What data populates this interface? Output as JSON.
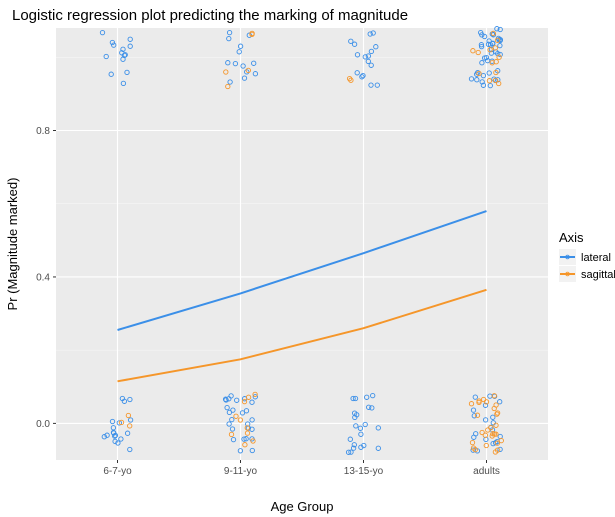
{
  "chart_data": {
    "type": "line",
    "title": "Logistic regression plot predicting the marking of magnitude",
    "xlabel": "Age Group",
    "ylabel": "Pr (Magnitude marked)",
    "categories": [
      "6-7-yo",
      "9-11-yo",
      "13-15-yo",
      "adults"
    ],
    "ylim": [
      -0.1,
      1.08
    ],
    "y_ticks": [
      0.0,
      0.4,
      0.8
    ],
    "y_tick_labels": [
      "0.0",
      "0.4",
      "0.8"
    ],
    "grid": true,
    "legend": {
      "title": "Axis",
      "position": "right"
    },
    "series": [
      {
        "name": "lateral",
        "color": "#3b8fe8",
        "values": [
          0.255,
          0.355,
          0.465,
          0.58
        ]
      },
      {
        "name": "sagittal",
        "color": "#f5962a",
        "values": [
          0.115,
          0.175,
          0.26,
          0.365
        ]
      }
    ],
    "jitter_points": [
      {
        "series": "lateral",
        "category": "6-7-yo",
        "outcome": 1,
        "count": 14
      },
      {
        "series": "lateral",
        "category": "6-7-yo",
        "outcome": 0,
        "count": 18
      },
      {
        "series": "sagittal",
        "category": "6-7-yo",
        "outcome": 0,
        "count": 3
      },
      {
        "series": "lateral",
        "category": "9-11-yo",
        "outcome": 1,
        "count": 13
      },
      {
        "series": "sagittal",
        "category": "9-11-yo",
        "outcome": 1,
        "count": 5
      },
      {
        "series": "lateral",
        "category": "9-11-yo",
        "outcome": 0,
        "count": 26
      },
      {
        "series": "sagittal",
        "category": "9-11-yo",
        "outcome": 0,
        "count": 10
      },
      {
        "series": "lateral",
        "category": "13-15-yo",
        "outcome": 1,
        "count": 16
      },
      {
        "series": "sagittal",
        "category": "13-15-yo",
        "outcome": 1,
        "count": 2
      },
      {
        "series": "lateral",
        "category": "13-15-yo",
        "outcome": 0,
        "count": 22
      },
      {
        "series": "lateral",
        "category": "adults",
        "outcome": 1,
        "count": 42
      },
      {
        "series": "sagittal",
        "category": "adults",
        "outcome": 1,
        "count": 14
      },
      {
        "series": "lateral",
        "category": "adults",
        "outcome": 0,
        "count": 22
      },
      {
        "series": "sagittal",
        "category": "adults",
        "outcome": 0,
        "count": 28
      }
    ]
  }
}
